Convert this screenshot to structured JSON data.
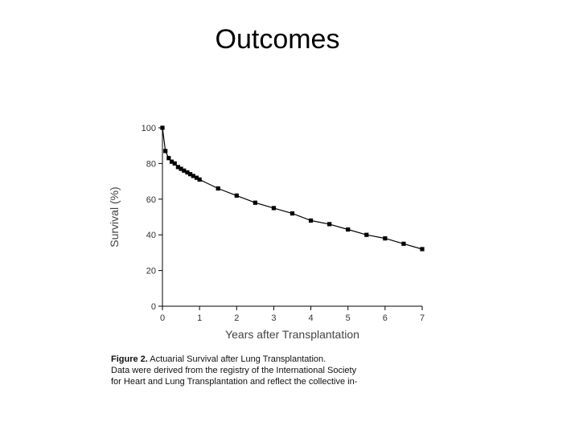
{
  "slide": {
    "title": "Outcomes"
  },
  "caption": {
    "figure_label": "Figure 2.",
    "figure_title": "Actuarial Survival after Lung Transplantation.",
    "line1": "Data were derived from the registry of the International Society",
    "line2": "for Heart and Lung Transplantation and reflect the collective in-"
  },
  "chart_data": {
    "type": "line",
    "xlabel": "Years after Transplantation",
    "ylabel": "Survival (%)",
    "xlim": [
      0,
      7
    ],
    "ylim": [
      0,
      100
    ],
    "x_ticks": [
      0,
      1,
      2,
      3,
      4,
      5,
      6,
      7
    ],
    "y_ticks": [
      0,
      20,
      40,
      60,
      80,
      100
    ],
    "grid": false,
    "line_color": "#000000",
    "marker": "square",
    "x": [
      0,
      0.08,
      0.17,
      0.25,
      0.33,
      0.42,
      0.5,
      0.58,
      0.67,
      0.75,
      0.83,
      0.92,
      1.0,
      1.5,
      2.0,
      2.5,
      3.0,
      3.5,
      4.0,
      4.5,
      5.0,
      5.5,
      6.0,
      6.5,
      7.0
    ],
    "y": [
      100,
      87,
      83,
      81,
      80,
      78,
      77,
      76,
      75,
      74,
      73,
      72,
      71,
      66,
      62,
      58,
      55,
      52,
      48,
      46,
      43,
      40,
      38,
      35,
      32
    ]
  }
}
